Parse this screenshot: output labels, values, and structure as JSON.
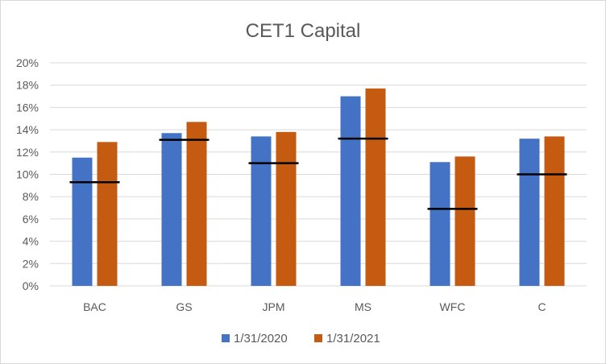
{
  "chart_data": {
    "type": "bar",
    "title": "CET1 Capital",
    "categories": [
      "BAC",
      "GS",
      "JPM",
      "MS",
      "WFC",
      "C"
    ],
    "series": [
      {
        "name": "1/31/2020",
        "color": "#4472c4",
        "values": [
          11.5,
          13.7,
          13.4,
          17.0,
          11.1,
          13.2
        ]
      },
      {
        "name": "1/31/2021",
        "color": "#c55a11",
        "values": [
          12.9,
          14.7,
          13.8,
          17.7,
          11.6,
          13.4
        ]
      }
    ],
    "reference_markers": {
      "color": "#000000",
      "values": [
        9.3,
        13.1,
        11.0,
        13.2,
        6.9,
        10.0
      ]
    },
    "y_tick_labels": [
      "0%",
      "2%",
      "4%",
      "6%",
      "8%",
      "10%",
      "12%",
      "14%",
      "16%",
      "18%",
      "20%"
    ],
    "ylim": [
      0,
      20
    ],
    "y_unit": "percent",
    "grid": true,
    "legend_position": "bottom"
  }
}
